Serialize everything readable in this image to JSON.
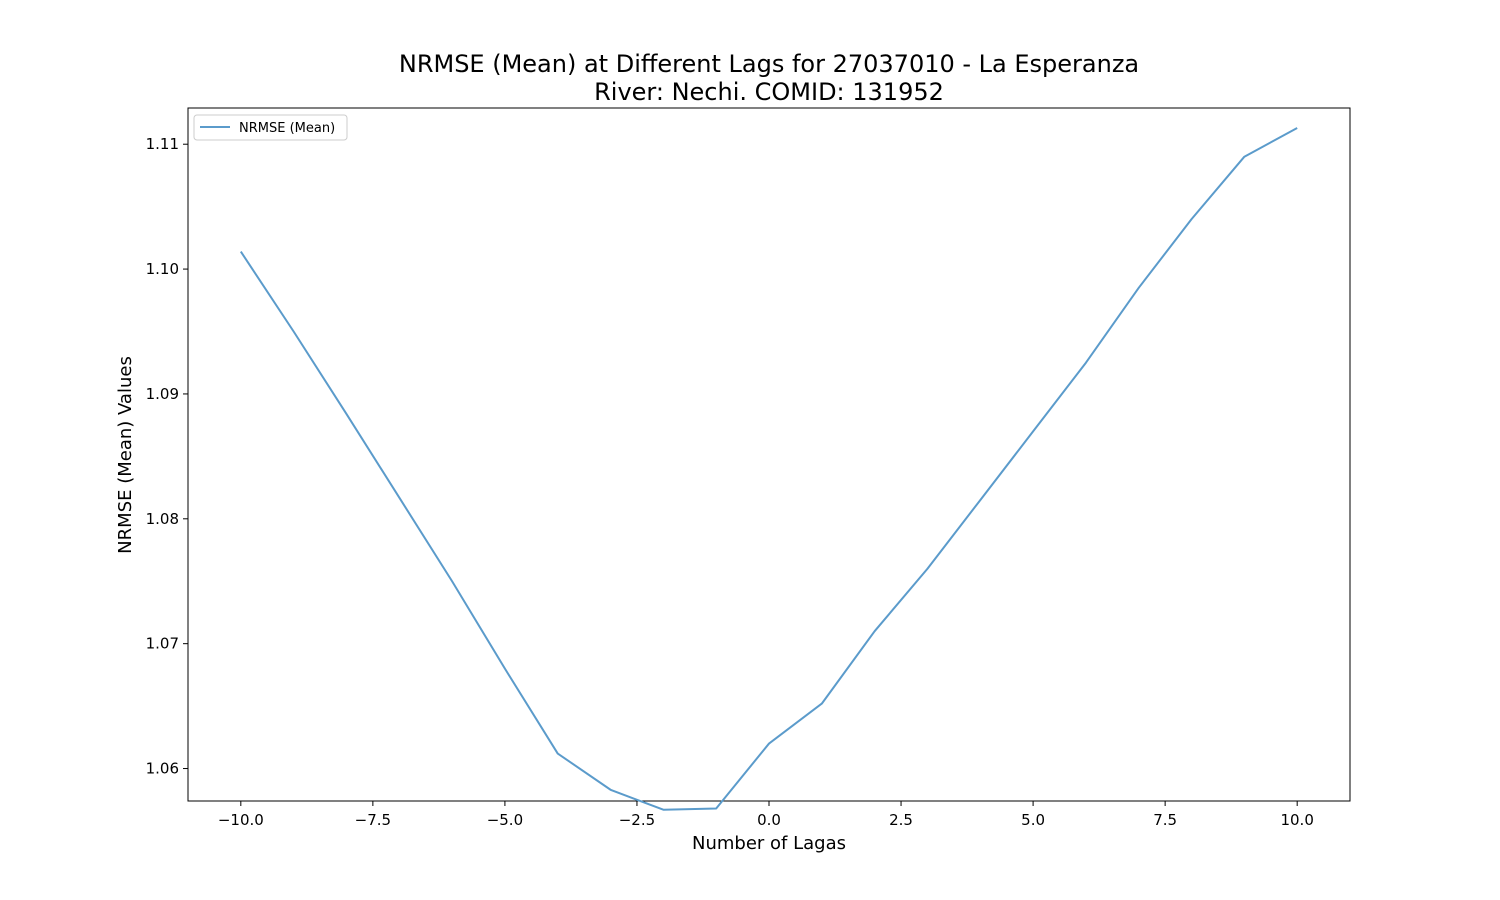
{
  "chart_data": {
    "type": "line",
    "title_line1": "NRMSE (Mean) at Different Lags for 27037010 - La Esperanza",
    "title_line2": "River: Nechi. COMID: 131952",
    "xlabel": "Number of Lagas",
    "ylabel": "NRMSE (Mean) Values",
    "xlim": [
      -11,
      11
    ],
    "ylim": [
      1.0574,
      1.1129
    ],
    "x_ticks": [
      -10.0,
      -7.5,
      -5.0,
      -2.5,
      0.0,
      2.5,
      5.0,
      7.5,
      10.0
    ],
    "x_tick_labels": [
      "−10.0",
      "−7.5",
      "−5.0",
      "−2.5",
      "0.0",
      "2.5",
      "5.0",
      "7.5",
      "10.0"
    ],
    "y_ticks": [
      1.06,
      1.07,
      1.08,
      1.09,
      1.1,
      1.11
    ],
    "y_tick_labels": [
      "1.06",
      "1.07",
      "1.08",
      "1.09",
      "1.10",
      "1.11"
    ],
    "grid": false,
    "legend_position": "top-left",
    "series": [
      {
        "name": "NRMSE (Mean)",
        "color": "#5b9bcb",
        "x": [
          -10,
          -9,
          -8,
          -7,
          -6,
          -5,
          -4,
          -3,
          -2,
          -1,
          0,
          1,
          2,
          3,
          4,
          5,
          6,
          7,
          8,
          9,
          10
        ],
        "y": [
          1.1014,
          1.095,
          1.0884,
          1.0817,
          1.075,
          1.068,
          1.0612,
          1.0583,
          1.0567,
          1.0568,
          1.062,
          1.0652,
          1.071,
          1.076,
          1.0815,
          1.087,
          1.0925,
          1.0985,
          1.104,
          1.109,
          1.1113
        ]
      }
    ]
  }
}
